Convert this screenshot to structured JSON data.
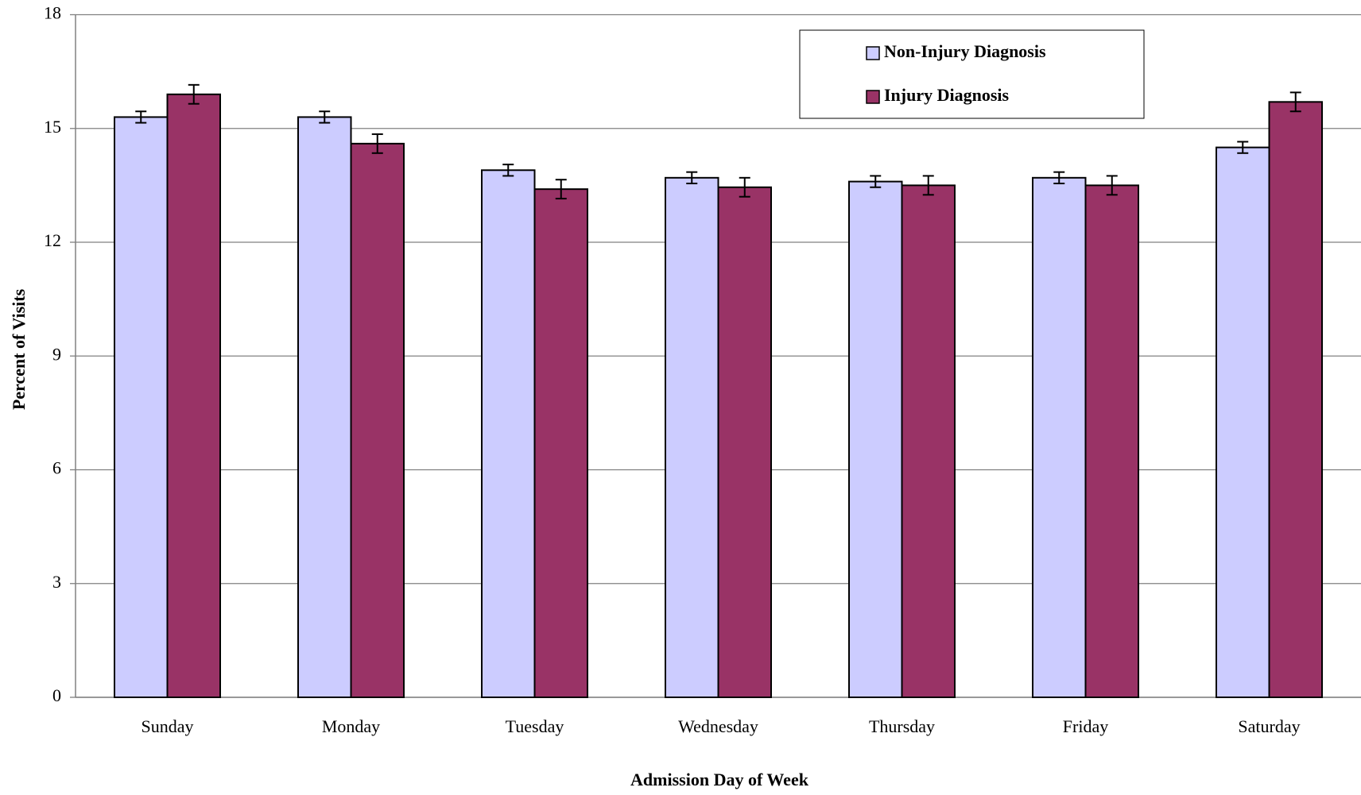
{
  "chart_data": {
    "type": "bar",
    "x_label": "Admission Day of Week",
    "y_label": "Percent of Visits",
    "categories": [
      "Sunday",
      "Monday",
      "Tuesday",
      "Wednesday",
      "Thursday",
      "Friday",
      "Saturday"
    ],
    "series": [
      {
        "name": "Non-Injury Diagnosis",
        "color": "#ccccff",
        "values": [
          15.3,
          15.3,
          13.9,
          13.7,
          13.6,
          13.7,
          14.5
        ],
        "errors": [
          0.15,
          0.15,
          0.15,
          0.15,
          0.15,
          0.15,
          0.15
        ]
      },
      {
        "name": "Injury Diagnosis",
        "color": "#993366",
        "values": [
          15.9,
          14.6,
          13.4,
          13.45,
          13.5,
          13.5,
          15.7
        ],
        "errors": [
          0.25,
          0.25,
          0.25,
          0.25,
          0.25,
          0.25,
          0.25
        ]
      }
    ],
    "ylim": [
      0,
      18
    ],
    "yticks": [
      0,
      3,
      6,
      9,
      12,
      15,
      18
    ],
    "grid": true
  }
}
